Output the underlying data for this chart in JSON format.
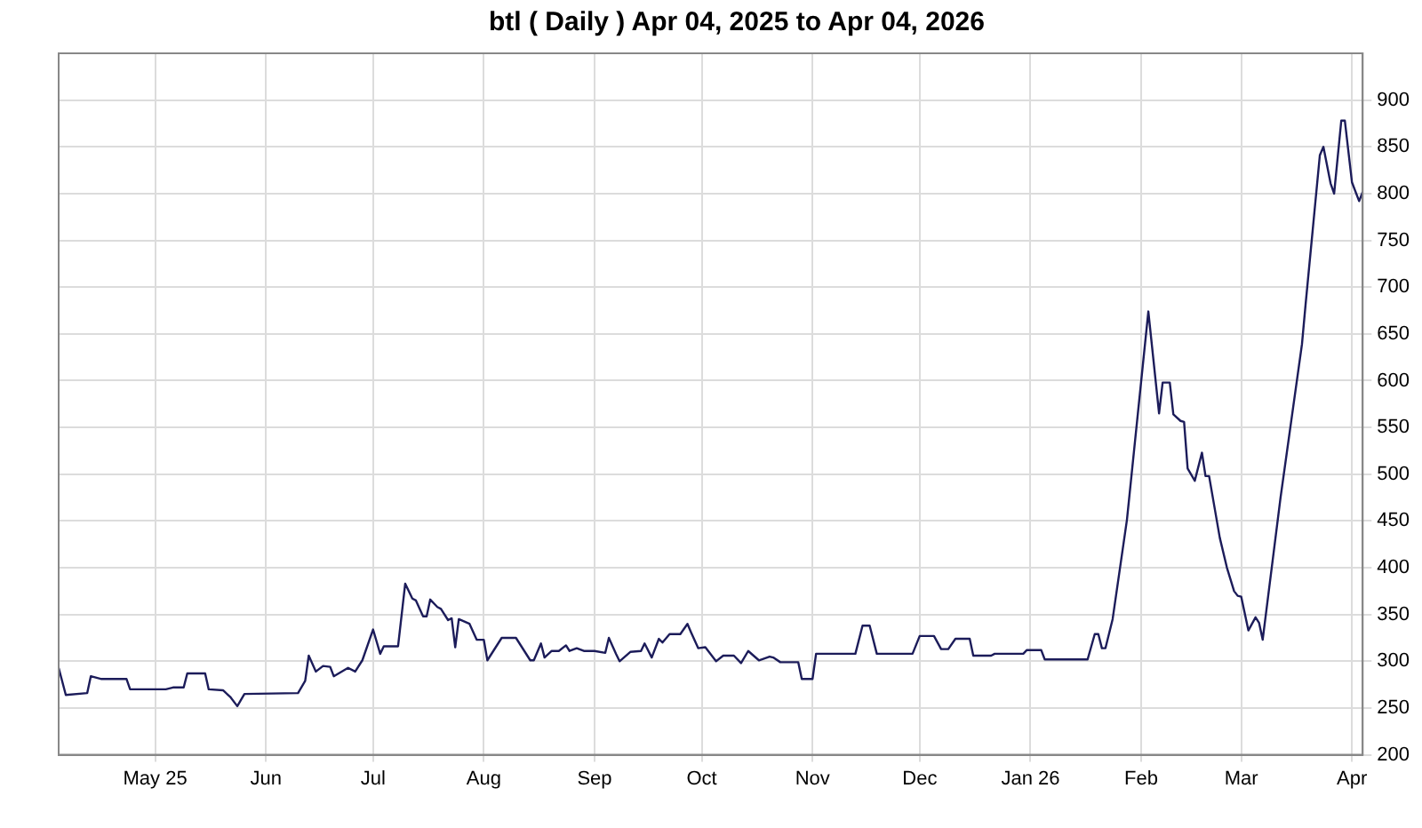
{
  "chart_data": {
    "type": "line",
    "title": "btl ( Daily ) Apr 04, 2025 to Apr 04, 2026",
    "xlim": [
      "2025-04-04",
      "2026-04-04"
    ],
    "xticks": [
      {
        "value": "2025-05-01",
        "label": "May 25"
      },
      {
        "value": "2025-06-01",
        "label": "Jun"
      },
      {
        "value": "2025-07-01",
        "label": "Jul"
      },
      {
        "value": "2025-08-01",
        "label": "Aug"
      },
      {
        "value": "2025-09-01",
        "label": "Sep"
      },
      {
        "value": "2025-10-01",
        "label": "Oct"
      },
      {
        "value": "2025-11-01",
        "label": "Nov"
      },
      {
        "value": "2025-12-01",
        "label": "Dec"
      },
      {
        "value": "2026-01-01",
        "label": "Jan 26"
      },
      {
        "value": "2026-02-01",
        "label": "Feb"
      },
      {
        "value": "2026-03-01",
        "label": "Mar"
      },
      {
        "value": "2026-04-01",
        "label": "Apr"
      }
    ],
    "ylim": [
      200,
      950
    ],
    "yticks": [
      200,
      250,
      300,
      350,
      400,
      450,
      500,
      550,
      600,
      650,
      700,
      750,
      800,
      850,
      900
    ],
    "grid": true,
    "legend": false,
    "marker": "none",
    "line_style": "solid",
    "series": [
      {
        "color": "#1c1c5a",
        "x": [
          "2025-04-04",
          "2025-04-06",
          "2025-04-12",
          "2025-04-13",
          "2025-04-16",
          "2025-04-23",
          "2025-04-24",
          "2025-05-04",
          "2025-05-06",
          "2025-05-09",
          "2025-05-10",
          "2025-05-15",
          "2025-05-16",
          "2025-05-20",
          "2025-05-22",
          "2025-05-24",
          "2025-05-26",
          "2025-06-10",
          "2025-06-12",
          "2025-06-13",
          "2025-06-15",
          "2025-06-17",
          "2025-06-19",
          "2025-06-20",
          "2025-06-24",
          "2025-06-26",
          "2025-06-28",
          "2025-07-01",
          "2025-07-03",
          "2025-07-04",
          "2025-07-08",
          "2025-07-10",
          "2025-07-12",
          "2025-07-13",
          "2025-07-15",
          "2025-07-16",
          "2025-07-17",
          "2025-07-19",
          "2025-07-20",
          "2025-07-22",
          "2025-07-23",
          "2025-07-24",
          "2025-07-25",
          "2025-07-28",
          "2025-07-30",
          "2025-08-01",
          "2025-08-02",
          "2025-08-06",
          "2025-08-10",
          "2025-08-14",
          "2025-08-15",
          "2025-08-17",
          "2025-08-18",
          "2025-08-20",
          "2025-08-22",
          "2025-08-24",
          "2025-08-25",
          "2025-08-27",
          "2025-08-29",
          "2025-09-01",
          "2025-09-04",
          "2025-09-05",
          "2025-09-07",
          "2025-09-08",
          "2025-09-11",
          "2025-09-14",
          "2025-09-15",
          "2025-09-17",
          "2025-09-19",
          "2025-09-20",
          "2025-09-22",
          "2025-09-25",
          "2025-09-27",
          "2025-09-28",
          "2025-09-30",
          "2025-10-02",
          "2025-10-05",
          "2025-10-07",
          "2025-10-10",
          "2025-10-12",
          "2025-10-14",
          "2025-10-17",
          "2025-10-20",
          "2025-10-21",
          "2025-10-23",
          "2025-10-28",
          "2025-10-29",
          "2025-11-01",
          "2025-11-02",
          "2025-11-13",
          "2025-11-15",
          "2025-11-17",
          "2025-11-19",
          "2025-11-29",
          "2025-12-01",
          "2025-12-05",
          "2025-12-07",
          "2025-12-09",
          "2025-12-11",
          "2025-12-15",
          "2025-12-16",
          "2025-12-21",
          "2025-12-22",
          "2025-12-30",
          "2025-12-31",
          "2026-01-04",
          "2026-01-05",
          "2026-01-17",
          "2026-01-19",
          "2026-01-20",
          "2026-01-21",
          "2026-01-22",
          "2026-01-24",
          "2026-01-28",
          "2026-02-03",
          "2026-02-06",
          "2026-02-07",
          "2026-02-09",
          "2026-02-10",
          "2026-02-12",
          "2026-02-13",
          "2026-02-14",
          "2026-02-16",
          "2026-02-18",
          "2026-02-19",
          "2026-02-20",
          "2026-02-23",
          "2026-02-25",
          "2026-02-27",
          "2026-02-28",
          "2026-03-01",
          "2026-03-03",
          "2026-03-05",
          "2026-03-06",
          "2026-03-07",
          "2026-03-12",
          "2026-03-18",
          "2026-03-19",
          "2026-03-23",
          "2026-03-24",
          "2026-03-26",
          "2026-03-27",
          "2026-03-29",
          "2026-03-30",
          "2026-04-01",
          "2026-04-03",
          "2026-04-04"
        ],
        "values": [
          293,
          264,
          266,
          284,
          281,
          281,
          270,
          270,
          272,
          272,
          287,
          287,
          270,
          269,
          262,
          252,
          265,
          266,
          279,
          306,
          289,
          295,
          294,
          284,
          293,
          289,
          301,
          334,
          308,
          316,
          316,
          383,
          367,
          365,
          348,
          348,
          366,
          358,
          356,
          344,
          346,
          315,
          345,
          340,
          323,
          323,
          301,
          325,
          325,
          301,
          301,
          319,
          304,
          311,
          311,
          317,
          311,
          314,
          311,
          311,
          309,
          325,
          308,
          300,
          310,
          311,
          319,
          304,
          324,
          320,
          329,
          329,
          340,
          331,
          314,
          315,
          300,
          306,
          306,
          298,
          311,
          301,
          305,
          304,
          299,
          299,
          281,
          281,
          308,
          308,
          338,
          338,
          308,
          308,
          327,
          327,
          313,
          313,
          324,
          324,
          306,
          306,
          308,
          308,
          312,
          312,
          302,
          302,
          329,
          329,
          314,
          314,
          345,
          451,
          674,
          565,
          598,
          598,
          564,
          557,
          556,
          506,
          493,
          523,
          498,
          498,
          432,
          400,
          375,
          370,
          369,
          333,
          347,
          341,
          323,
          475,
          639,
          681,
          841,
          850,
          811,
          800,
          878,
          878,
          812,
          792,
          802
        ]
      }
    ]
  }
}
